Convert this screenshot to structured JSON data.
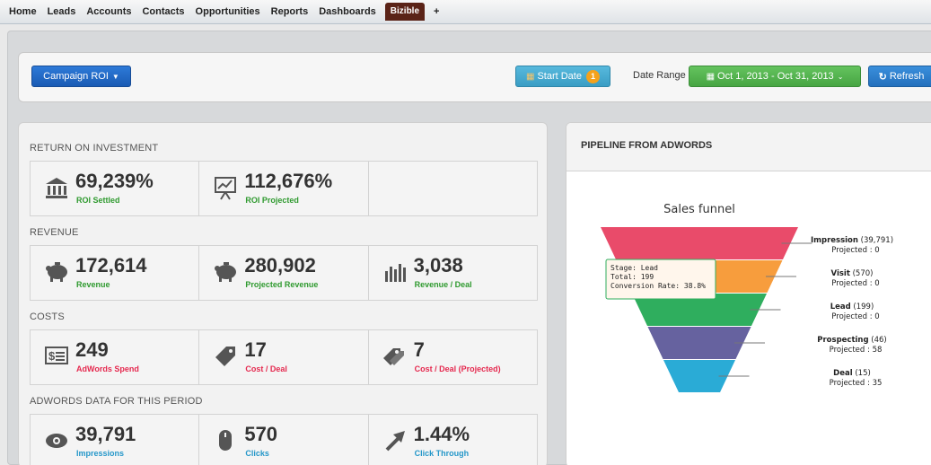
{
  "nav": {
    "tabs": [
      "Home",
      "Leads",
      "Accounts",
      "Contacts",
      "Opportunities",
      "Reports",
      "Dashboards",
      "Bizible",
      "+"
    ],
    "active": "Bizible"
  },
  "toolbar": {
    "campaign_label": "Campaign ROI",
    "start_date_label": "Start Date",
    "start_date_badge": "1",
    "date_range_label": "Date Range",
    "date_range_value": "Oct 1, 2013 - Oct 31, 2013",
    "refresh_label": "Refresh"
  },
  "roi": {
    "sections": {
      "roi": "RETURN ON INVESTMENT",
      "revenue": "REVENUE",
      "costs": "COSTS",
      "adwords": "ADWORDS DATA FOR THIS PERIOD"
    },
    "roi_row": [
      {
        "value": "69,239%",
        "label": "ROI Settled",
        "icon": "bank-icon",
        "color": "green"
      },
      {
        "value": "112,676%",
        "label": "ROI Projected",
        "icon": "presentation-chart-icon",
        "color": "green"
      },
      {
        "value": "",
        "label": "",
        "icon": "",
        "color": "green"
      }
    ],
    "revenue_row": [
      {
        "value": "172,614",
        "label": "Revenue",
        "icon": "piggy-bank-icon",
        "color": "green"
      },
      {
        "value": "280,902",
        "label": "Projected Revenue",
        "icon": "piggy-bank-icon",
        "color": "green"
      },
      {
        "value": "3,038",
        "label": "Revenue / Deal",
        "icon": "bar-chart-icon",
        "color": "green"
      }
    ],
    "costs_row": [
      {
        "value": "249",
        "label": "AdWords Spend",
        "icon": "money-icon",
        "color": "red"
      },
      {
        "value": "17",
        "label": "Cost / Deal",
        "icon": "tag-icon",
        "color": "red"
      },
      {
        "value": "7",
        "label": "Cost / Deal (Projected)",
        "icon": "tags-icon",
        "color": "red"
      }
    ],
    "adwords_row": [
      {
        "value": "39,791",
        "label": "Impressions",
        "icon": "eye-icon",
        "color": "blue"
      },
      {
        "value": "570",
        "label": "Clicks",
        "icon": "mouse-icon",
        "color": "blue"
      },
      {
        "value": "1.44%",
        "label": "Click Through",
        "icon": "arrow-icon",
        "color": "blue"
      }
    ]
  },
  "pipeline": {
    "title": "PIPELINE FROM ADWORDS",
    "chart_title": "Sales funnel",
    "tooltip": {
      "stage": "Stage: Lead",
      "total": "Total: 199",
      "conversion": "Conversion Rate: 38.8%"
    }
  },
  "colors": {
    "impression": "#e94b6a",
    "visit": "#f79d3d",
    "lead": "#2fae5e",
    "prospecting": "#66629f",
    "deal": "#2aabd6"
  },
  "chart_data": {
    "type": "funnel",
    "title": "Sales funnel",
    "stages": [
      {
        "name": "Impression",
        "value": 39791,
        "projected_label": "Projected : 0"
      },
      {
        "name": "Visit",
        "value": 570,
        "projected_label": "Projected : 0"
      },
      {
        "name": "Lead",
        "value": 199,
        "projected_label": "Projected : 0"
      },
      {
        "name": "Prospecting",
        "value": 46,
        "projected_label": "Projected : 58"
      },
      {
        "name": "Deal",
        "value": 15,
        "projected_label": "Projected : 35"
      }
    ]
  }
}
